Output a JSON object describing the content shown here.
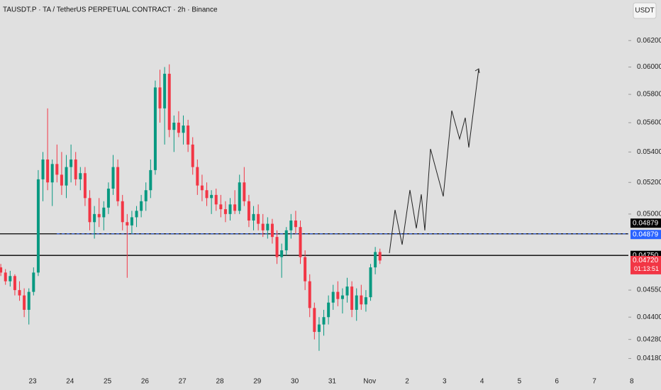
{
  "chart_data": {
    "type": "candlestick",
    "title": "TAUSDT.P · TA / TetherUS PERPETUAL CONTRACT · 2h · Binance",
    "currency": "USDT",
    "log_scale": true,
    "ylim": [
      0.0412,
      0.0652
    ],
    "yticks": [
      {
        "value": 0.062,
        "label": "0.06200"
      },
      {
        "value": 0.06,
        "label": "0.06000"
      },
      {
        "value": 0.058,
        "label": "0.05800"
      },
      {
        "value": 0.056,
        "label": "0.05600"
      },
      {
        "value": 0.054,
        "label": "0.05400"
      },
      {
        "value": 0.052,
        "label": "0.05200"
      },
      {
        "value": 0.05,
        "label": "0.05000"
      },
      {
        "value": 0.0455,
        "label": "0.04550"
      },
      {
        "value": 0.044,
        "label": "0.04400"
      },
      {
        "value": 0.0428,
        "label": "0.04280"
      },
      {
        "value": 0.0418,
        "label": "0.04180"
      }
    ],
    "x_labels": [
      "23",
      "24",
      "25",
      "26",
      "27",
      "28",
      "29",
      "30",
      "31",
      "Nov",
      "2",
      "3",
      "4",
      "5",
      "6",
      "7",
      "8"
    ],
    "up_color": "#089981",
    "down_color": "#f23645",
    "candles": [
      [
        0.0468,
        0.047,
        0.0463,
        0.0465
      ],
      [
        0.0465,
        0.0467,
        0.0458,
        0.046
      ],
      [
        0.046,
        0.0466,
        0.0457,
        0.0463
      ],
      [
        0.0463,
        0.0464,
        0.0452,
        0.0455
      ],
      [
        0.0455,
        0.046,
        0.0449,
        0.0452
      ],
      [
        0.0452,
        0.0456,
        0.044,
        0.0444
      ],
      [
        0.0444,
        0.0456,
        0.0436,
        0.0454
      ],
      [
        0.0454,
        0.0468,
        0.0452,
        0.0465
      ],
      [
        0.0465,
        0.0528,
        0.0463,
        0.0522
      ],
      [
        0.0522,
        0.054,
        0.0508,
        0.0535
      ],
      [
        0.0535,
        0.057,
        0.0515,
        0.052
      ],
      [
        0.052,
        0.0535,
        0.0505,
        0.0532
      ],
      [
        0.0532,
        0.0545,
        0.052,
        0.0525
      ],
      [
        0.0525,
        0.054,
        0.0512,
        0.0518
      ],
      [
        0.0518,
        0.0538,
        0.051,
        0.053
      ],
      [
        0.053,
        0.0545,
        0.052,
        0.0535
      ],
      [
        0.0535,
        0.054,
        0.0518,
        0.0522
      ],
      [
        0.0522,
        0.053,
        0.0515,
        0.0526
      ],
      [
        0.0526,
        0.053,
        0.0505,
        0.051
      ],
      [
        0.051,
        0.0515,
        0.049,
        0.0495
      ],
      [
        0.0495,
        0.0505,
        0.0485,
        0.05
      ],
      [
        0.05,
        0.051,
        0.0492,
        0.0498
      ],
      [
        0.0498,
        0.0508,
        0.049,
        0.0504
      ],
      [
        0.0504,
        0.052,
        0.05,
        0.0516
      ],
      [
        0.0516,
        0.0538,
        0.0512,
        0.053
      ],
      [
        0.053,
        0.0535,
        0.0505,
        0.0508
      ],
      [
        0.0508,
        0.0512,
        0.049,
        0.0495
      ],
      [
        0.0495,
        0.05,
        0.0462,
        0.0493
      ],
      [
        0.0493,
        0.0502,
        0.0488,
        0.0498
      ],
      [
        0.0498,
        0.0505,
        0.0492,
        0.0502
      ],
      [
        0.0502,
        0.0512,
        0.0498,
        0.0508
      ],
      [
        0.0508,
        0.052,
        0.0502,
        0.0515
      ],
      [
        0.0515,
        0.0535,
        0.051,
        0.0528
      ],
      [
        0.0528,
        0.059,
        0.0525,
        0.0585
      ],
      [
        0.0585,
        0.0598,
        0.056,
        0.057
      ],
      [
        0.057,
        0.06,
        0.0545,
        0.0595
      ],
      [
        0.0595,
        0.0602,
        0.055,
        0.0555
      ],
      [
        0.0555,
        0.0565,
        0.054,
        0.056
      ],
      [
        0.056,
        0.0568,
        0.055,
        0.0553
      ],
      [
        0.0553,
        0.0565,
        0.0545,
        0.0558
      ],
      [
        0.0558,
        0.0562,
        0.054,
        0.0545
      ],
      [
        0.0545,
        0.055,
        0.0525,
        0.053
      ],
      [
        0.053,
        0.0535,
        0.0512,
        0.0518
      ],
      [
        0.0518,
        0.0525,
        0.0508,
        0.0515
      ],
      [
        0.0515,
        0.052,
        0.0505,
        0.051
      ],
      [
        0.051,
        0.0515,
        0.05,
        0.0512
      ],
      [
        0.0512,
        0.0516,
        0.0502,
        0.0506
      ],
      [
        0.0506,
        0.0512,
        0.0498,
        0.0503
      ],
      [
        0.0503,
        0.0508,
        0.0495,
        0.05
      ],
      [
        0.05,
        0.051,
        0.0496,
        0.0506
      ],
      [
        0.0506,
        0.0515,
        0.05,
        0.0502
      ],
      [
        0.0502,
        0.0525,
        0.05,
        0.052
      ],
      [
        0.052,
        0.053,
        0.0505,
        0.0508
      ],
      [
        0.0508,
        0.0512,
        0.0492,
        0.0496
      ],
      [
        0.0496,
        0.0505,
        0.049,
        0.05
      ],
      [
        0.05,
        0.0506,
        0.049,
        0.0494
      ],
      [
        0.0494,
        0.05,
        0.0486,
        0.049
      ],
      [
        0.049,
        0.0498,
        0.0485,
        0.0494
      ],
      [
        0.0494,
        0.0497,
        0.0482,
        0.0486
      ],
      [
        0.0486,
        0.049,
        0.047,
        0.0474
      ],
      [
        0.0474,
        0.0482,
        0.0462,
        0.0478
      ],
      [
        0.0478,
        0.0492,
        0.0475,
        0.049
      ],
      [
        0.049,
        0.05,
        0.0485,
        0.0496
      ],
      [
        0.0496,
        0.0502,
        0.0488,
        0.0492
      ],
      [
        0.0492,
        0.0496,
        0.047,
        0.0474
      ],
      [
        0.0474,
        0.0478,
        0.0455,
        0.046
      ],
      [
        0.046,
        0.0464,
        0.044,
        0.0445
      ],
      [
        0.0445,
        0.0448,
        0.0428,
        0.0432
      ],
      [
        0.0432,
        0.044,
        0.0422,
        0.0436
      ],
      [
        0.0436,
        0.0444,
        0.043,
        0.044
      ],
      [
        0.044,
        0.0452,
        0.0436,
        0.0448
      ],
      [
        0.0448,
        0.0458,
        0.0444,
        0.0454
      ],
      [
        0.0454,
        0.046,
        0.0446,
        0.045
      ],
      [
        0.045,
        0.0456,
        0.0442,
        0.0452
      ],
      [
        0.0452,
        0.0462,
        0.0448,
        0.0457
      ],
      [
        0.0457,
        0.046,
        0.044,
        0.0444
      ],
      [
        0.0444,
        0.0456,
        0.0438,
        0.0452
      ],
      [
        0.0452,
        0.0458,
        0.0444,
        0.0447
      ],
      [
        0.0447,
        0.0455,
        0.0443,
        0.0451
      ],
      [
        0.0451,
        0.047,
        0.0449,
        0.0468
      ],
      [
        0.0468,
        0.048,
        0.0464,
        0.0477
      ],
      [
        0.0477,
        0.0479,
        0.047,
        0.0472
      ]
    ],
    "lines": [
      {
        "value": 0.04879,
        "color": "#000000",
        "dashed": false
      },
      {
        "value": 0.04879,
        "color": "#2962ff",
        "dashed": true
      },
      {
        "value": 0.0475,
        "color": "#000000",
        "dashed": false
      }
    ],
    "price_labels": [
      {
        "value": 0.04879,
        "label": "0.04879",
        "color": "#000000"
      },
      {
        "value": 0.04879,
        "label": "0.04879",
        "color": "#2962ff"
      },
      {
        "value": 0.0475,
        "label": "0.04750",
        "color": "#000000"
      },
      {
        "value": 0.0472,
        "label": "0.04720",
        "color": "#f23645",
        "countdown": "01:13:51"
      }
    ]
  }
}
